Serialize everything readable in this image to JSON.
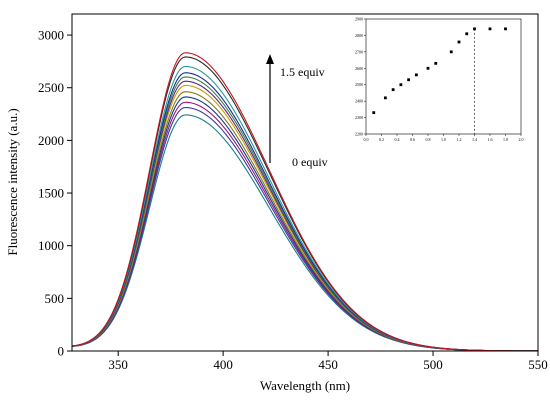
{
  "chart_data": [
    {
      "type": "line",
      "title": "",
      "xlabel": "Wavelength (nm)",
      "ylabel": "Fluorescence intensity (a.u.)",
      "xlim": [
        328,
        550
      ],
      "ylim": [
        0,
        3200
      ],
      "xticks": [
        350,
        400,
        450,
        500,
        550
      ],
      "yticks": [
        0,
        500,
        1000,
        1500,
        2000,
        2500,
        3000
      ],
      "peak_wavelength": 382,
      "annotations": [
        {
          "text": "1.5 equiv"
        },
        {
          "text": "0 equiv"
        }
      ],
      "series": [
        {
          "color": "#1b7e8f",
          "peak": 2240
        },
        {
          "color": "#3a3a9e",
          "peak": 2310
        },
        {
          "color": "#a0147a",
          "peak": 2360
        },
        {
          "color": "#0a3d8f",
          "peak": 2410
        },
        {
          "color": "#8a7a1a",
          "peak": 2460
        },
        {
          "color": "#c89c00",
          "peak": 2520
        },
        {
          "color": "#5a2a8a",
          "peak": 2560
        },
        {
          "color": "#3f7f3f",
          "peak": 2600
        },
        {
          "color": "#1a2a9a",
          "peak": 2640
        },
        {
          "color": "#2a9a9a",
          "peak": 2700
        },
        {
          "color": "#2b2b2b",
          "peak": 2790
        },
        {
          "color": "#c8141e",
          "peak": 2830
        }
      ],
      "legend": "none",
      "grid": false
    },
    {
      "type": "scatter",
      "title": "",
      "xlabel": "",
      "ylabel": "",
      "xlim": [
        0,
        2.0
      ],
      "ylim": [
        2200,
        2900
      ],
      "xticks": [
        "0.0",
        "0.2",
        "0.4",
        "0.6",
        "0.8",
        "1.0",
        "1.2",
        "1.4",
        "1.6",
        "1.8",
        "2.0"
      ],
      "yticks": [
        "2200",
        "2300",
        "2400",
        "2500",
        "2600",
        "2700",
        "2800",
        "2900"
      ],
      "x": [
        0.1,
        0.25,
        0.35,
        0.45,
        0.55,
        0.65,
        0.8,
        0.9,
        1.1,
        1.2,
        1.3,
        1.4,
        1.6,
        1.8
      ],
      "y": [
        2330,
        2420,
        2470,
        2500,
        2530,
        2560,
        2600,
        2630,
        2700,
        2760,
        2810,
        2840,
        2840,
        2840
      ],
      "vline_x": 1.4,
      "marker_color": "#000000"
    }
  ]
}
